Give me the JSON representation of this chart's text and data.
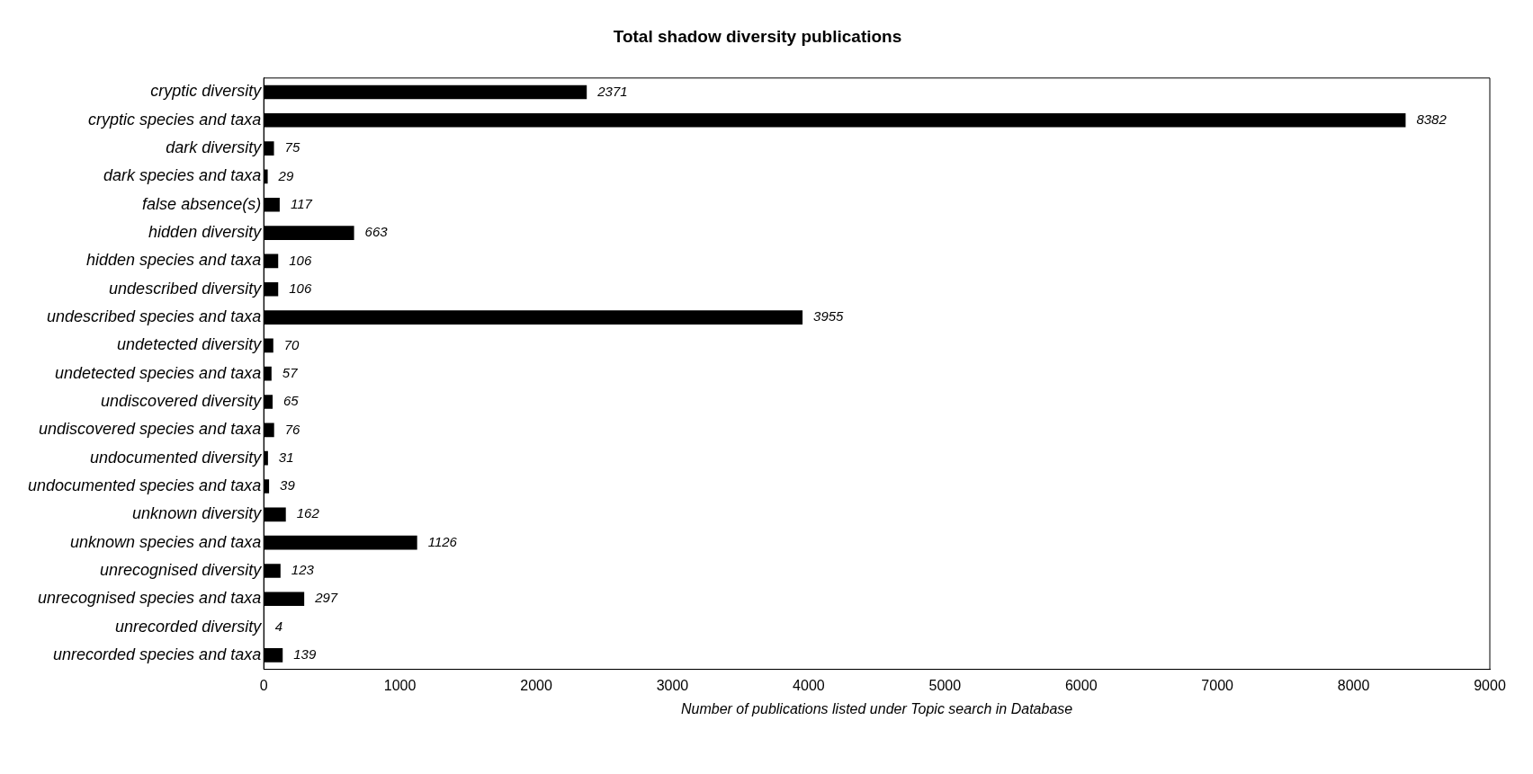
{
  "chart_data": {
    "type": "bar",
    "orientation": "horizontal",
    "title": "Total shadow diversity publications",
    "xlabel": "Number of publications listed under Topic search in Database",
    "categories": [
      "cryptic diversity",
      "cryptic species and taxa",
      "dark diversity",
      "dark species and taxa",
      "false absence(s)",
      "hidden diversity",
      "hidden species and taxa",
      "undescribed diversity",
      "undescribed species and taxa",
      "undetected diversity",
      "undetected species and taxa",
      "undiscovered diversity",
      "undiscovered species and taxa",
      "undocumented diversity",
      "undocumented species and taxa",
      "unknown diversity",
      "unknown species and taxa",
      "unrecognised diversity",
      "unrecognised species and taxa",
      "unrecorded diversity",
      "unrecorded species and taxa"
    ],
    "values": [
      2371,
      8382,
      75,
      29,
      117,
      663,
      106,
      106,
      3955,
      70,
      57,
      65,
      76,
      31,
      39,
      162,
      1126,
      123,
      297,
      4,
      139
    ],
    "color": "#000000",
    "xlim": [
      0,
      9000
    ],
    "xticks": [
      0,
      1000,
      2000,
      3000,
      4000,
      5000,
      6000,
      7000,
      8000,
      9000
    ],
    "grid": false,
    "legend": false,
    "data_labels": true
  }
}
